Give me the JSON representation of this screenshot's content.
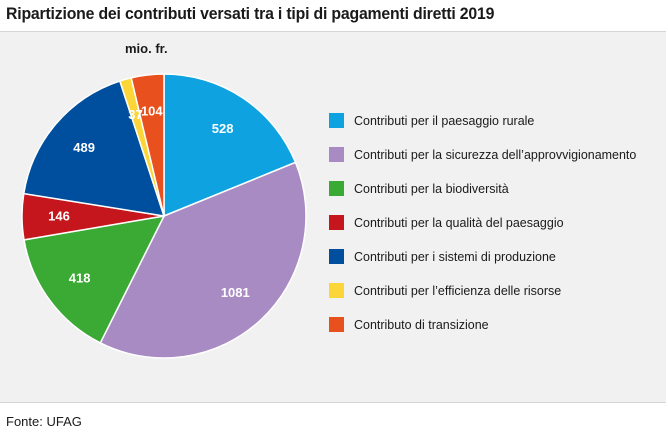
{
  "chart_data": {
    "type": "pie",
    "title": "Ripartizione dei contributi versati tra i tipi di pagamenti diretti 2019",
    "unit": "mio. fr.",
    "slices": [
      {
        "label": "Contributi per il paesaggio rurale",
        "value": 528,
        "color": "#0ea3e0"
      },
      {
        "label": "Contributi per la sicurezza dell’approvvigionamento",
        "value": 1081,
        "color": "#a98bc4"
      },
      {
        "label": "Contributi per la biodiversità",
        "value": 418,
        "color": "#3aaa35"
      },
      {
        "label": "Contributi per la qualità del paesaggio",
        "value": 146,
        "color": "#c4161c"
      },
      {
        "label": "Contributi per i sistemi di produzione",
        "value": 489,
        "color": "#004f9f"
      },
      {
        "label": "Contributi per l’efficienza delle risorse",
        "value": 37,
        "color": "#fcd638"
      },
      {
        "label": "Contributo di transizione",
        "value": 104,
        "color": "#e8501e"
      }
    ],
    "start_position": "top",
    "direction": "clockwise",
    "legend_position": "right"
  },
  "source": "Fonte: UFAG"
}
